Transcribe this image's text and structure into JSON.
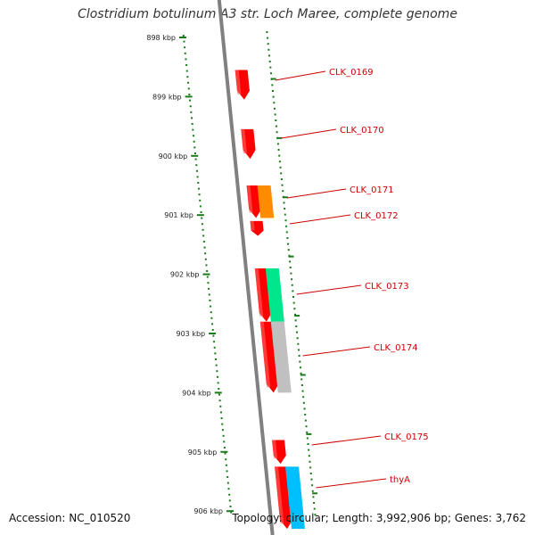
{
  "title": "Clostridium botulinum A3 str. Loch Maree, complete genome",
  "accession": "Accession: NC_010520",
  "summary": "Topology: circular; Length: 3,992,906 bp; Genes: 3,762",
  "scale_labels": [
    "898 kbp",
    "899 kbp",
    "900 kbp",
    "901 kbp",
    "902 kbp",
    "903 kbp",
    "904 kbp",
    "905 kbp",
    "906 kbp"
  ],
  "genes": [
    {
      "name": "CLK_0169",
      "start_kbp": 898.55,
      "end_kbp": 899.05,
      "track": "red",
      "color": "#ff0000"
    },
    {
      "name": "CLK_0170",
      "start_kbp": 899.55,
      "end_kbp": 900.05,
      "track": "red",
      "color": "#ff0000"
    },
    {
      "name": "CLK_0171",
      "start_kbp": 900.5,
      "end_kbp": 901.05,
      "track": "red",
      "color": "#ff0000"
    },
    {
      "name": "CLK_0171",
      "start_kbp": 900.5,
      "end_kbp": 901.05,
      "track": "feature",
      "color": "#ff8c00"
    },
    {
      "name": "CLK_0172",
      "start_kbp": 901.1,
      "end_kbp": 901.35,
      "track": "red",
      "color": "#ff0000"
    },
    {
      "name": "CLK_0173",
      "start_kbp": 901.9,
      "end_kbp": 902.8,
      "track": "red",
      "color": "#ff0000"
    },
    {
      "name": "CLK_0173",
      "start_kbp": 901.9,
      "end_kbp": 902.8,
      "track": "feature",
      "color": "#00e68c"
    },
    {
      "name": "CLK_0174",
      "start_kbp": 902.8,
      "end_kbp": 904.0,
      "track": "red",
      "color": "#ff0000"
    },
    {
      "name": "CLK_0174",
      "start_kbp": 902.8,
      "end_kbp": 904.0,
      "track": "feature",
      "color": "#c0c0c0"
    },
    {
      "name": "CLK_0175",
      "start_kbp": 904.8,
      "end_kbp": 905.2,
      "track": "red",
      "color": "#ff0000"
    },
    {
      "name": "thyA",
      "start_kbp": 905.25,
      "end_kbp": 906.3,
      "track": "red",
      "color": "#ff0000"
    },
    {
      "name": "thyA",
      "start_kbp": 905.25,
      "end_kbp": 906.3,
      "track": "feature",
      "color": "#00bfff"
    }
  ],
  "callouts": [
    "CLK_0169",
    "CLK_0170",
    "CLK_0171",
    "CLK_0172",
    "CLK_0173",
    "CLK_0174",
    "CLK_0175",
    "thyA"
  ],
  "colors": {
    "backbone": "#808080",
    "scale_ticks": "#1a7a1a",
    "gene_label": "#cc0000",
    "leader_line": "#cc0000"
  }
}
